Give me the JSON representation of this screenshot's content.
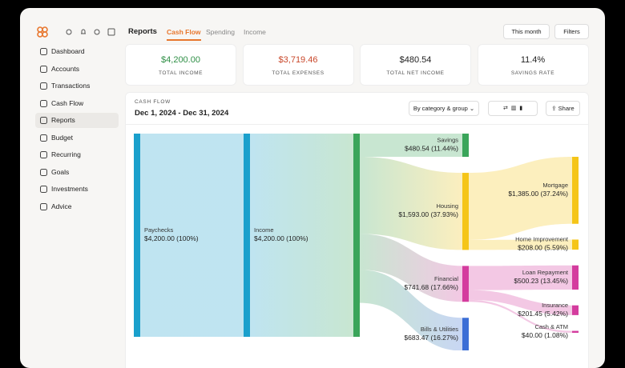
{
  "app": {
    "nav": [
      "Dashboard",
      "Accounts",
      "Transactions",
      "Cash Flow",
      "Reports",
      "Budget",
      "Recurring",
      "Goals",
      "Investments",
      "Advice"
    ],
    "page_title": "Reports",
    "tabs": [
      "Cash Flow",
      "Spending",
      "Income"
    ],
    "buttons": [
      "This month",
      "Filters"
    ]
  },
  "stats": [
    {
      "value": "$4,200.00",
      "label": "TOTAL INCOME",
      "color": "#2f8f46"
    },
    {
      "value": "$3,719.46",
      "label": "TOTAL EXPENSES",
      "color": "#c9482b"
    },
    {
      "value": "$480.54",
      "label": "TOTAL NET INCOME",
      "color": "#222"
    },
    {
      "value": "11.4%",
      "label": "SAVINGS RATE",
      "color": "#222"
    }
  ],
  "report": {
    "eyebrow": "CASH FLOW",
    "date_range": "Dec 1, 2024 - Dec 31, 2024",
    "group_by": "By category & group",
    "share": "Share",
    "sankey": {
      "source": {
        "name": "Paychecks",
        "value": 4200,
        "value_label": "$4,200.00 (100%)",
        "color": "#1aa0cc"
      },
      "income": {
        "name": "Income",
        "value": 4200,
        "value_label": "$4,200.00 (100%)",
        "color": "#1aa0cc"
      },
      "total_color": "#3aa55a",
      "categories": [
        {
          "name": "Savings",
          "value": 480.54,
          "value_label": "$480.54 (11.44%)",
          "color": "#3aa55a",
          "children": []
        },
        {
          "name": "Housing",
          "value": 1593,
          "value_label": "$1,593.00 (37.93%)",
          "color": "#f5c518",
          "children": [
            {
              "name": "Mortgage",
              "value": 1385,
              "value_label": "$1,385.00 (37.24%)"
            },
            {
              "name": "Home Improvement",
              "value": 208,
              "value_label": "$208.00 (5.59%)"
            }
          ]
        },
        {
          "name": "Financial",
          "value": 741.68,
          "value_label": "$741.68 (17.66%)",
          "color": "#d43c9e",
          "children": [
            {
              "name": "Loan Repayment",
              "value": 500.23,
              "value_label": "$500.23 (13.45%)"
            },
            {
              "name": "Insurance",
              "value": 201.45,
              "value_label": "$201.45 (5.42%)"
            },
            {
              "name": "Cash & ATM",
              "value": 40,
              "value_label": "$40.00 (1.08%)"
            }
          ]
        },
        {
          "name": "Bills & Utilities",
          "value": 683.47,
          "value_label": "$683.47 (16.27%)",
          "color": "#3b6ed6",
          "children": []
        }
      ]
    }
  }
}
